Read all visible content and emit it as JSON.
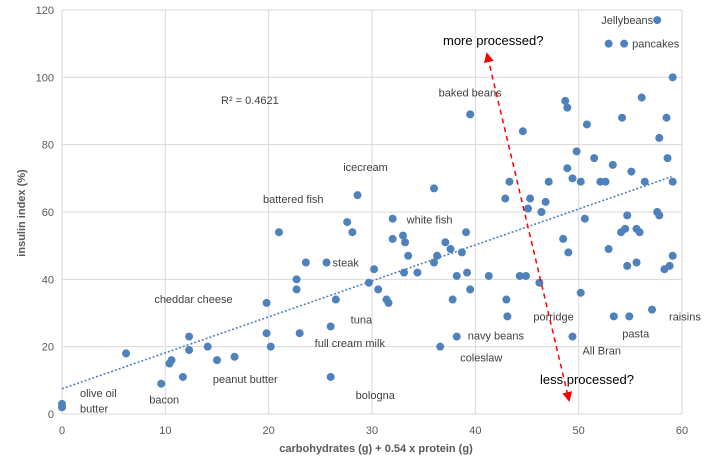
{
  "chart_data": {
    "type": "scatter",
    "xlabel": "carbohydrates (g) + 0.54 x protein (g)",
    "ylabel": "insulin index (%)",
    "xlim": [
      0,
      60
    ],
    "ylim": [
      0,
      120
    ],
    "x_ticks": [
      0,
      10,
      20,
      30,
      40,
      50,
      60
    ],
    "y_ticks": [
      0,
      20,
      40,
      60,
      80,
      100,
      120
    ],
    "grid": "horizontal and vertical",
    "r_squared_label": "R² = 0.4621",
    "trendline": {
      "style": "dotted linear",
      "x": [
        0,
        59
      ],
      "y": [
        7.5,
        70.5
      ]
    },
    "points": [
      {
        "x": 0.0,
        "y": 3
      },
      {
        "x": 0.0,
        "y": 2
      },
      {
        "x": 6.2,
        "y": 18
      },
      {
        "x": 9.6,
        "y": 9
      },
      {
        "x": 10.4,
        "y": 15
      },
      {
        "x": 10.6,
        "y": 16
      },
      {
        "x": 11.7,
        "y": 11
      },
      {
        "x": 12.3,
        "y": 19
      },
      {
        "x": 12.3,
        "y": 23
      },
      {
        "x": 14.1,
        "y": 20
      },
      {
        "x": 15.0,
        "y": 16
      },
      {
        "x": 16.7,
        "y": 17
      },
      {
        "x": 19.8,
        "y": 33
      },
      {
        "x": 19.8,
        "y": 24
      },
      {
        "x": 20.2,
        "y": 20
      },
      {
        "x": 21.0,
        "y": 54
      },
      {
        "x": 22.7,
        "y": 40
      },
      {
        "x": 22.7,
        "y": 37
      },
      {
        "x": 23.0,
        "y": 24
      },
      {
        "x": 23.6,
        "y": 45
      },
      {
        "x": 25.6,
        "y": 45
      },
      {
        "x": 26.0,
        "y": 11
      },
      {
        "x": 26.0,
        "y": 26
      },
      {
        "x": 26.5,
        "y": 34
      },
      {
        "x": 27.6,
        "y": 57
      },
      {
        "x": 28.1,
        "y": 54
      },
      {
        "x": 28.6,
        "y": 65
      },
      {
        "x": 29.7,
        "y": 39
      },
      {
        "x": 30.2,
        "y": 43
      },
      {
        "x": 30.6,
        "y": 37
      },
      {
        "x": 31.4,
        "y": 34
      },
      {
        "x": 31.6,
        "y": 33
      },
      {
        "x": 32.0,
        "y": 52
      },
      {
        "x": 32.0,
        "y": 58
      },
      {
        "x": 33.0,
        "y": 53
      },
      {
        "x": 33.1,
        "y": 42
      },
      {
        "x": 33.2,
        "y": 51
      },
      {
        "x": 33.5,
        "y": 47
      },
      {
        "x": 34.4,
        "y": 42
      },
      {
        "x": 36.0,
        "y": 45
      },
      {
        "x": 36.0,
        "y": 67
      },
      {
        "x": 36.3,
        "y": 47
      },
      {
        "x": 36.6,
        "y": 20
      },
      {
        "x": 37.1,
        "y": 51
      },
      {
        "x": 37.6,
        "y": 49
      },
      {
        "x": 37.8,
        "y": 34
      },
      {
        "x": 38.2,
        "y": 41
      },
      {
        "x": 38.2,
        "y": 23
      },
      {
        "x": 38.7,
        "y": 48
      },
      {
        "x": 39.1,
        "y": 54
      },
      {
        "x": 39.2,
        "y": 42
      },
      {
        "x": 39.5,
        "y": 89
      },
      {
        "x": 39.5,
        "y": 37
      },
      {
        "x": 41.3,
        "y": 41
      },
      {
        "x": 42.9,
        "y": 64
      },
      {
        "x": 43.0,
        "y": 34
      },
      {
        "x": 43.1,
        "y": 29
      },
      {
        "x": 43.3,
        "y": 69
      },
      {
        "x": 44.3,
        "y": 41
      },
      {
        "x": 44.6,
        "y": 84
      },
      {
        "x": 44.9,
        "y": 41
      },
      {
        "x": 45.1,
        "y": 61
      },
      {
        "x": 45.3,
        "y": 64
      },
      {
        "x": 46.2,
        "y": 39
      },
      {
        "x": 46.4,
        "y": 60
      },
      {
        "x": 46.8,
        "y": 63
      },
      {
        "x": 47.1,
        "y": 69
      },
      {
        "x": 48.5,
        "y": 52
      },
      {
        "x": 48.7,
        "y": 93
      },
      {
        "x": 48.9,
        "y": 91
      },
      {
        "x": 48.9,
        "y": 73
      },
      {
        "x": 49.0,
        "y": 48
      },
      {
        "x": 49.4,
        "y": 70
      },
      {
        "x": 49.4,
        "y": 23
      },
      {
        "x": 49.8,
        "y": 78
      },
      {
        "x": 50.2,
        "y": 69
      },
      {
        "x": 50.2,
        "y": 36
      },
      {
        "x": 50.6,
        "y": 58
      },
      {
        "x": 50.8,
        "y": 86
      },
      {
        "x": 51.5,
        "y": 76
      },
      {
        "x": 52.1,
        "y": 69
      },
      {
        "x": 52.6,
        "y": 69
      },
      {
        "x": 52.9,
        "y": 49
      },
      {
        "x": 52.9,
        "y": 110
      },
      {
        "x": 53.3,
        "y": 74
      },
      {
        "x": 53.4,
        "y": 29
      },
      {
        "x": 54.1,
        "y": 54
      },
      {
        "x": 54.2,
        "y": 88
      },
      {
        "x": 54.4,
        "y": 110
      },
      {
        "x": 54.5,
        "y": 55
      },
      {
        "x": 54.7,
        "y": 59
      },
      {
        "x": 54.7,
        "y": 44
      },
      {
        "x": 54.9,
        "y": 29
      },
      {
        "x": 55.1,
        "y": 72
      },
      {
        "x": 55.6,
        "y": 55
      },
      {
        "x": 55.6,
        "y": 45
      },
      {
        "x": 55.9,
        "y": 54
      },
      {
        "x": 56.1,
        "y": 94
      },
      {
        "x": 56.4,
        "y": 69
      },
      {
        "x": 57.1,
        "y": 31
      },
      {
        "x": 57.6,
        "y": 117
      },
      {
        "x": 57.6,
        "y": 60
      },
      {
        "x": 57.8,
        "y": 59
      },
      {
        "x": 57.8,
        "y": 82
      },
      {
        "x": 58.3,
        "y": 43
      },
      {
        "x": 58.5,
        "y": 88
      },
      {
        "x": 58.6,
        "y": 76
      },
      {
        "x": 58.8,
        "y": 44
      },
      {
        "x": 59.1,
        "y": 100
      },
      {
        "x": 59.1,
        "y": 69
      },
      {
        "x": 59.1,
        "y": 47
      }
    ],
    "point_labels": [
      {
        "text": "Jellybeans",
        "x": 57.6,
        "y": 117,
        "anchor": "end",
        "dx": -4,
        "dy": 4
      },
      {
        "text": "pancakes",
        "x": 54.4,
        "y": 110,
        "anchor": "start",
        "dx": 8,
        "dy": 4
      },
      {
        "text": "baked beans",
        "x": 39.5,
        "y": 89,
        "anchor": "middle",
        "dx": 0,
        "dy": -18
      },
      {
        "text": "icecream",
        "x": 28.6,
        "y": 65,
        "anchor": "middle",
        "dx": 8,
        "dy": -24
      },
      {
        "text": "battered fish",
        "x": 21.0,
        "y": 54,
        "anchor": "start",
        "dx": -16,
        "dy": -29
      },
      {
        "text": "white fish",
        "x": 32.0,
        "y": 58,
        "anchor": "start",
        "dx": 14,
        "dy": 5
      },
      {
        "text": "steak",
        "x": 25.6,
        "y": 45,
        "anchor": "start",
        "dx": 6,
        "dy": 4
      },
      {
        "text": "cheddar cheese",
        "x": 19.8,
        "y": 33,
        "anchor": "end",
        "dx": -34,
        "dy": 0
      },
      {
        "text": "tuna",
        "x": 26.0,
        "y": 26,
        "anchor": "start",
        "dx": 20,
        "dy": -3
      },
      {
        "text": "full cream milk",
        "x": 23.0,
        "y": 24,
        "anchor": "start",
        "dx": 15,
        "dy": 14
      },
      {
        "text": "bologna",
        "x": 26.0,
        "y": 11,
        "anchor": "start",
        "dx": 25,
        "dy": 22
      },
      {
        "text": "peanut butter",
        "x": 11.7,
        "y": 11,
        "anchor": "start",
        "dx": 30,
        "dy": 6
      },
      {
        "text": "bacon",
        "x": 9.6,
        "y": 9,
        "anchor": "middle",
        "dx": 3,
        "dy": 20
      },
      {
        "text": "olive oil",
        "x": 0.0,
        "y": 3,
        "anchor": "start",
        "dx": 18,
        "dy": -7
      },
      {
        "text": "butter",
        "x": 0.0,
        "y": 2,
        "anchor": "start",
        "dx": 18,
        "dy": 5
      },
      {
        "text": "navy beans",
        "x": 38.2,
        "y": 23,
        "anchor": "start",
        "dx": 11,
        "dy": 3
      },
      {
        "text": "coleslaw",
        "x": 36.6,
        "y": 20,
        "anchor": "start",
        "dx": 20,
        "dy": 15
      },
      {
        "text": "porridge",
        "x": 43.1,
        "y": 29,
        "anchor": "start",
        "dx": 26,
        "dy": 4
      },
      {
        "text": "All Bran",
        "x": 49.4,
        "y": 23,
        "anchor": "start",
        "dx": 10,
        "dy": 18
      },
      {
        "text": "pasta",
        "x": 54.9,
        "y": 29,
        "anchor": "start",
        "dx": -7,
        "dy": 21
      },
      {
        "text": "raisins",
        "x": 57.1,
        "y": 31,
        "anchor": "start",
        "dx": 17,
        "dy": 11
      }
    ],
    "annotations": {
      "more": "more processed?",
      "less": "less processed?"
    },
    "arrow": {
      "from": [
        41.2,
        106
      ],
      "to": [
        49.0,
        5
      ]
    },
    "colors": {
      "points": "#4f81bd",
      "trendline": "#4f81bd",
      "arrow": "#ff0000",
      "grid": "#d9d9d9"
    }
  }
}
